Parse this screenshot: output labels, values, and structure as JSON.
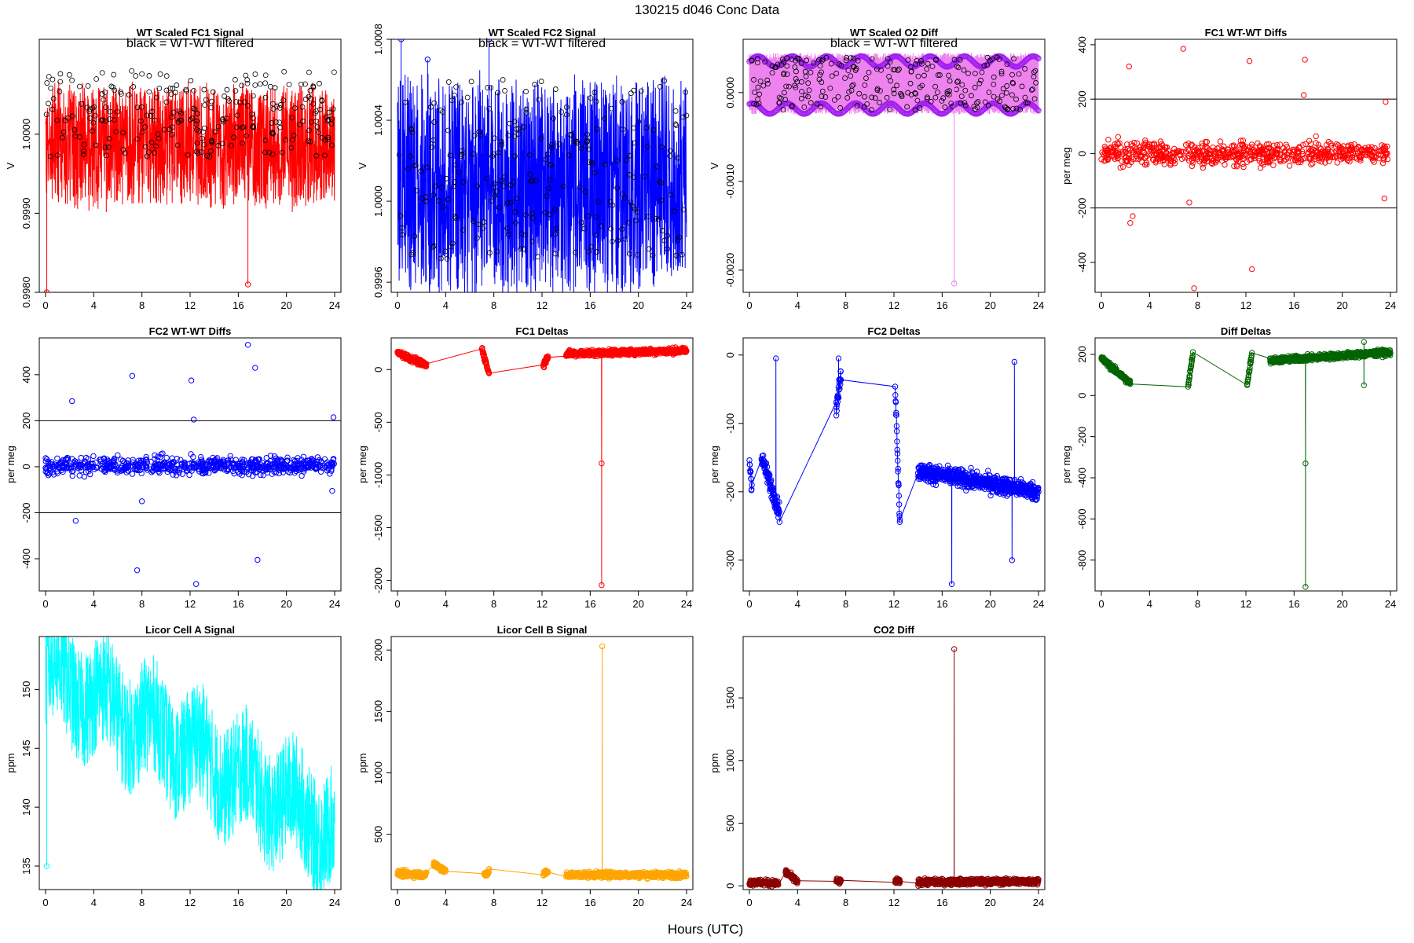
{
  "page": {
    "title": "130215   d046   Conc Data",
    "xlabel": "Hours (UTC)"
  },
  "chart_data": [
    {
      "id": "fc1_signal",
      "type": "line",
      "title": "WT Scaled FC1 Signal",
      "annotation": "black = WT-WT filtered",
      "ylabel": "V",
      "color": "#ff0000",
      "xlim": [
        0,
        24
      ],
      "ylim": [
        0.998,
        1.0012
      ],
      "xticks": [
        0,
        4,
        8,
        12,
        16,
        20,
        24
      ],
      "yticks": [
        0.998,
        0.999,
        1.0
      ],
      "yticklabels": [
        "0.9980",
        "0.9990",
        "1.0000"
      ],
      "shape": "noise",
      "band": [
        0.9991,
        1.0006
      ],
      "trend": [
        1.0002,
        1.0002
      ],
      "spikes": [
        [
          16.8,
          0.9981
        ],
        [
          0.1,
          0.998
        ]
      ],
      "overlay": {
        "color": "#000000",
        "range": [
          0.9997,
          1.0008
        ]
      }
    },
    {
      "id": "fc2_signal",
      "type": "line",
      "title": "WT Scaled FC2 Signal",
      "annotation": "black = WT-WT filtered",
      "ylabel": "V",
      "color": "#0000ff",
      "xlim": [
        0,
        24
      ],
      "ylim": [
        0.99955,
        1.0008
      ],
      "xticks": [
        0,
        4,
        8,
        12,
        16,
        20,
        24
      ],
      "yticks": [
        0.9996,
        1.0,
        1.0004,
        1.0008
      ],
      "yticklabels": [
        "0.9996",
        "1.0000",
        "1.0004",
        "1.0008"
      ],
      "shape": "noise",
      "band": [
        0.99955,
        1.0006
      ],
      "trend": [
        1.0001,
        1.0001
      ],
      "spikes": [
        [
          0.3,
          1.0008
        ],
        [
          7.6,
          1.0008
        ],
        [
          2.5,
          1.0007
        ]
      ],
      "overlay": {
        "color": "#000000",
        "range": [
          0.9997,
          1.0006
        ]
      }
    },
    {
      "id": "o2_diff",
      "type": "line",
      "title": "WT Scaled O2 Diff",
      "annotation": "black = WT-WT filtered",
      "ylabel": "V",
      "color": "#ee82ee",
      "xlim": [
        0,
        24
      ],
      "ylim": [
        -0.00225,
        0.0006
      ],
      "xticks": [
        0,
        4,
        8,
        12,
        16,
        20,
        24
      ],
      "yticks": [
        -0.002,
        -0.001,
        0.0
      ],
      "yticklabels": [
        "-0.0020",
        "-0.0010",
        "0.0000"
      ],
      "shape": "band",
      "band": [
        -0.0002,
        0.0004
      ],
      "trend": [
        0.0001,
        0.0001
      ],
      "spikes": [
        [
          17.0,
          -0.00215
        ]
      ],
      "markers": {
        "color": "#a020f0",
        "upper": 0.00035,
        "lower": -0.00018
      },
      "overlay": {
        "color": "#000000",
        "range": [
          -0.0002,
          0.0004
        ]
      }
    },
    {
      "id": "fc1_wtwt",
      "type": "scatter",
      "title": "FC1 WT-WT Diffs",
      "ylabel": "per meg",
      "color": "#ff0000",
      "xlim": [
        0,
        24
      ],
      "ylim": [
        -510,
        420
      ],
      "xticks": [
        0,
        4,
        8,
        12,
        16,
        20,
        24
      ],
      "yticks": [
        -400,
        -200,
        0,
        200,
        400
      ],
      "yticklabels": [
        "-400",
        "-200",
        "0",
        "200",
        "400"
      ],
      "hlines": [
        200,
        -200
      ],
      "scatter": {
        "center": 0,
        "spread": 45
      },
      "outliers": [
        [
          2.3,
          320
        ],
        [
          2.4,
          -255
        ],
        [
          2.6,
          -230
        ],
        [
          6.8,
          385
        ],
        [
          7.7,
          -495
        ],
        [
          7.3,
          -180
        ],
        [
          12.3,
          340
        ],
        [
          12.5,
          -425
        ],
        [
          16.9,
          345
        ],
        [
          16.8,
          215
        ],
        [
          23.6,
          190
        ],
        [
          23.5,
          -165
        ]
      ]
    },
    {
      "id": "fc2_wtwt",
      "type": "scatter",
      "title": "FC2 WT-WT Diffs",
      "ylabel": "per meg",
      "color": "#0000ff",
      "xlim": [
        0,
        24
      ],
      "ylim": [
        -540,
        560
      ],
      "xticks": [
        0,
        4,
        8,
        12,
        16,
        20,
        24
      ],
      "yticks": [
        -400,
        -200,
        0,
        200,
        400
      ],
      "yticklabels": [
        "-400",
        "-200",
        "0",
        "200",
        "400"
      ],
      "hlines": [
        200,
        -200
      ],
      "scatter": {
        "center": 5,
        "spread": 40
      },
      "outliers": [
        [
          2.2,
          285
        ],
        [
          2.5,
          -235
        ],
        [
          7.2,
          395
        ],
        [
          7.6,
          -450
        ],
        [
          8.0,
          -150
        ],
        [
          12.1,
          375
        ],
        [
          12.3,
          205
        ],
        [
          12.5,
          -510
        ],
        [
          16.8,
          530
        ],
        [
          17.4,
          430
        ],
        [
          17.6,
          -405
        ],
        [
          23.9,
          215
        ],
        [
          23.8,
          -105
        ]
      ]
    },
    {
      "id": "fc1_deltas",
      "type": "line",
      "title": "FC1 Deltas",
      "ylabel": "per meg",
      "color": "#ff0000",
      "xlim": [
        0,
        24
      ],
      "ylim": [
        -2100,
        300
      ],
      "xticks": [
        0,
        4,
        8,
        12,
        16,
        20,
        24
      ],
      "yticks": [
        -2000,
        -1500,
        -1000,
        -500,
        0
      ],
      "yticklabels": [
        "-2000",
        "-1500",
        "-1000",
        "-500",
        "0"
      ],
      "segments": [
        [
          0,
          2.4,
          160,
          40
        ],
        [
          7.0,
          7.6,
          200,
          -40
        ],
        [
          12.1,
          12.5,
          40,
          130
        ],
        [
          14.0,
          24,
          150,
          180
        ]
      ],
      "spikes": [
        [
          16.95,
          -2045
        ],
        [
          16.95,
          -890
        ]
      ]
    },
    {
      "id": "fc2_deltas",
      "type": "line",
      "title": "FC2 Deltas",
      "ylabel": "per meg",
      "color": "#0000ff",
      "xlim": [
        0,
        24
      ],
      "ylim": [
        -345,
        25
      ],
      "xticks": [
        0,
        4,
        8,
        12,
        16,
        20,
        24
      ],
      "yticks": [
        -300,
        -200,
        -100,
        0
      ],
      "yticklabels": [
        "-300",
        "-200",
        "-100",
        "0"
      ],
      "segments": [
        [
          0,
          0.2,
          -155,
          -190
        ],
        [
          1.0,
          2.5,
          -150,
          -230
        ],
        [
          7.2,
          7.6,
          -80,
          -30
        ],
        [
          12.1,
          12.5,
          -40,
          -250
        ],
        [
          14.0,
          24,
          -170,
          -200
        ]
      ],
      "spikes": [
        [
          2.2,
          -5
        ],
        [
          7.4,
          -5
        ],
        [
          16.8,
          -335
        ],
        [
          22.0,
          -10
        ],
        [
          21.8,
          -300
        ]
      ]
    },
    {
      "id": "diff_deltas",
      "type": "line",
      "title": "Diff Deltas",
      "ylabel": "per meg",
      "color": "#006400",
      "xlim": [
        0,
        24
      ],
      "ylim": [
        -950,
        280
      ],
      "xticks": [
        0,
        4,
        8,
        12,
        16,
        20,
        24
      ],
      "yticks": [
        -800,
        -600,
        -400,
        -200,
        0,
        200
      ],
      "yticklabels": [
        "-800",
        "-600",
        "-400",
        "-200",
        "0",
        "200"
      ],
      "segments": [
        [
          0,
          2.4,
          180,
          60
        ],
        [
          7.2,
          7.6,
          40,
          210
        ],
        [
          12.1,
          12.5,
          50,
          210
        ],
        [
          14.0,
          24,
          170,
          210
        ]
      ],
      "spikes": [
        [
          16.95,
          -930
        ],
        [
          16.95,
          -330
        ],
        [
          21.8,
          260
        ],
        [
          21.8,
          50
        ]
      ]
    },
    {
      "id": "licor_a",
      "type": "line",
      "title": "Licor Cell A Signal",
      "ylabel": "ppm",
      "color": "#00ffff",
      "xlim": [
        0,
        24
      ],
      "ylim": [
        133,
        154.5
      ],
      "xticks": [
        0,
        4,
        8,
        12,
        16,
        20,
        24
      ],
      "yticks": [
        135,
        140,
        145,
        150
      ],
      "yticklabels": [
        "135",
        "140",
        "145",
        "150"
      ],
      "shape": "noise",
      "band": [
        -5,
        5
      ],
      "trend": [
        151.5,
        138
      ],
      "spikes": [
        [
          0.1,
          135
        ]
      ]
    },
    {
      "id": "licor_b",
      "type": "line",
      "title": "Licor Cell B Signal",
      "ylabel": "ppm",
      "color": "#ffa500",
      "xlim": [
        0,
        24
      ],
      "ylim": [
        50,
        2110
      ],
      "xticks": [
        0,
        4,
        8,
        12,
        16,
        20,
        24
      ],
      "yticks": [
        500,
        1000,
        1500,
        2000
      ],
      "yticklabels": [
        "500",
        "1000",
        "1500",
        "2000"
      ],
      "segments": [
        [
          0,
          2.4,
          180,
          170
        ],
        [
          3.0,
          4.0,
          260,
          200
        ],
        [
          7.2,
          7.6,
          180,
          190
        ],
        [
          12.1,
          12.5,
          180,
          190
        ],
        [
          14.0,
          24,
          170,
          170
        ]
      ],
      "spikes": [
        [
          17.0,
          2030
        ]
      ]
    },
    {
      "id": "co2_diff",
      "type": "line",
      "title": "CO2 Diff",
      "ylabel": "ppm",
      "color": "#8b0000",
      "xlim": [
        0,
        24
      ],
      "ylim": [
        -30,
        1990
      ],
      "xticks": [
        0,
        4,
        8,
        12,
        16,
        20,
        24
      ],
      "yticks": [
        0,
        500,
        1000,
        1500
      ],
      "yticklabels": [
        "0",
        "500",
        "1000",
        "1500"
      ],
      "segments": [
        [
          0,
          2.4,
          30,
          20
        ],
        [
          3.0,
          4.0,
          110,
          30
        ],
        [
          7.2,
          7.6,
          40,
          30
        ],
        [
          12.1,
          12.5,
          40,
          30
        ],
        [
          14.0,
          24,
          30,
          35
        ]
      ],
      "spikes": [
        [
          17.0,
          1890
        ]
      ]
    }
  ]
}
